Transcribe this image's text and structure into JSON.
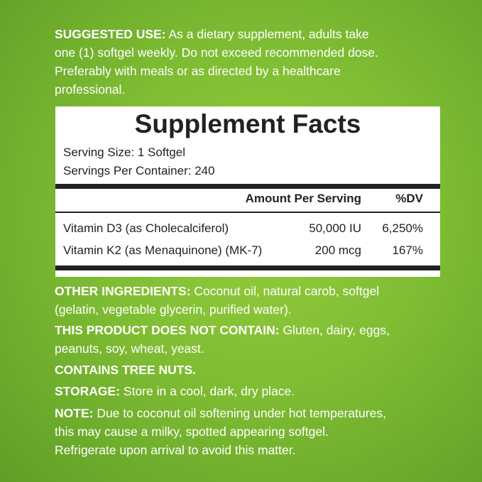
{
  "suggested_use": {
    "label": "SUGGESTED USE:",
    "lines": [
      " As a dietary supplement, adults take",
      "one (1) softgel weekly. Do not exceed recommended dose.",
      "Preferably with meals or as directed by a healthcare",
      "professional."
    ]
  },
  "facts": {
    "title": "Supplement Facts",
    "serving_size": "Serving Size: 1 Softgel",
    "servings_per_container": "Servings Per Container: 240",
    "header_amount": "Amount Per Serving",
    "header_dv": "%DV",
    "rows": [
      {
        "name": "Vitamin D3 (as Cholecalciferol)",
        "amount": "50,000 IU",
        "dv": "6,250%"
      },
      {
        "name": "Vitamin K2 (as Menaquinone) (MK-7)",
        "amount": "200 mcg",
        "dv": "167%"
      }
    ]
  },
  "other_ingredients": {
    "label": "OTHER INGREDIENTS:",
    "line1": " Coconut oil, natural carob, softgel",
    "line2": "(gelatin, vegetable glycerin, purified water)."
  },
  "not_contain": {
    "label": "THIS PRODUCT DOES NOT CONTAIN:",
    "line1": " Gluten, dairy, eggs,",
    "line2": "peanuts, soy, wheat, yeast."
  },
  "tree_nuts": {
    "label": "CONTAINS TREE NUTS."
  },
  "storage": {
    "label": "STORAGE:",
    "text": " Store in a cool, dark, dry place."
  },
  "note": {
    "label": "NOTE:",
    "line1": " Due to coconut oil softening under hot temperatures,",
    "line2": "this may cause a milky, spotted appearing softgel.",
    "line3": "Refrigerate upon arrival to avoid this matter."
  },
  "colors": {
    "background": "#7fbd33",
    "panel": "#ffffff",
    "text": "#222222"
  }
}
